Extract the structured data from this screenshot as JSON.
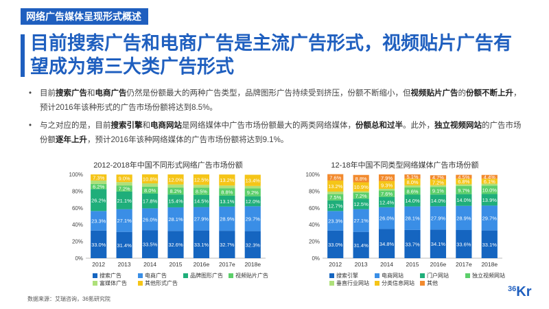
{
  "header": {
    "tag": "网络广告媒体呈现形式概述",
    "headline": "目前搜索广告和电商广告是主流广告形式，视频贴片广告有望成为第三大类广告形式"
  },
  "bullets": [
    {
      "parts": [
        {
          "t": "目前",
          "b": false
        },
        {
          "t": "搜索广告",
          "b": true
        },
        {
          "t": "和",
          "b": false
        },
        {
          "t": "电商广告",
          "b": true
        },
        {
          "t": "仍然是份额最大的两种广告类型，品牌图形广告持续受到挤压，份额不断缩小，但",
          "b": false
        },
        {
          "t": "视频贴片广告",
          "b": true
        },
        {
          "t": "的",
          "b": false
        },
        {
          "t": "份额不断上升",
          "b": true
        },
        {
          "t": "，预计2016年该种形式的广告市场份额将达到8.5%。",
          "b": false
        }
      ]
    },
    {
      "parts": [
        {
          "t": "与之对应的是，目前",
          "b": false
        },
        {
          "t": "搜索引擎",
          "b": true
        },
        {
          "t": "和",
          "b": false
        },
        {
          "t": "电商网站",
          "b": true
        },
        {
          "t": "是网络媒体中广告市场份额最大的两类网络媒体，",
          "b": false
        },
        {
          "t": "份额总和过半",
          "b": true
        },
        {
          "t": "。此外，",
          "b": false
        },
        {
          "t": "独立视频网站",
          "b": true
        },
        {
          "t": "的广告市场份额",
          "b": false
        },
        {
          "t": "逐年上升",
          "b": true
        },
        {
          "t": "，预计2016年该种网络媒体的广告市场份额将达到9.1%。",
          "b": false
        }
      ]
    }
  ],
  "bullet_dot": "•",
  "source": "数据来源：艾瑞咨询，36氪研究院",
  "logo": {
    "num": "36",
    "letters": "Kr"
  },
  "chart_data": [
    {
      "type": "bar",
      "stacked": true,
      "title": "2012-2018年中国不同形式网络广告市场份额",
      "categories": [
        "2012",
        "2013",
        "2014",
        "2015",
        "2016e",
        "2017e",
        "2018e"
      ],
      "yticks": [
        "0%",
        "20%",
        "40%",
        "60%",
        "80%",
        "100%"
      ],
      "ylim": [
        0,
        100
      ],
      "series": [
        {
          "name": "搜索广告",
          "color": "#1565c0",
          "values": [
            33.0,
            31.4,
            33.5,
            32.6,
            33.1,
            32.7,
            32.3
          ],
          "labels": [
            "33.0%",
            "31.4%",
            "33.5%",
            "32.6%",
            "33.1%",
            "32.7%",
            "32.3%"
          ]
        },
        {
          "name": "电商广告",
          "color": "#3a8ee6",
          "values": [
            23.3,
            27.1,
            26.0,
            28.1,
            27.9,
            28.9,
            29.7
          ],
          "labels": [
            "23.3%",
            "27.1%",
            "26.0%",
            "28.1%",
            "27.9%",
            "28.9%",
            "29.7%"
          ]
        },
        {
          "name": "品牌图形广告",
          "color": "#1fae7a",
          "values": [
            26.2,
            21.1,
            17.8,
            15.4,
            14.5,
            13.1,
            12.0
          ],
          "labels": [
            "26.2%",
            "21.1%",
            "17.8%",
            "15.4%",
            "14.5%",
            "13.1%",
            "12.0%"
          ]
        },
        {
          "name": "视频贴片广告",
          "color": "#5ccf6a",
          "values": [
            6.2,
            7.2,
            8.0,
            8.2,
            8.5,
            8.8,
            9.2
          ],
          "labels": [
            "6.2%",
            "7.2%",
            "8.0%",
            "8.2%",
            "8.5%",
            "8.8%",
            "9.2%"
          ]
        },
        {
          "name": "富媒体广告",
          "color": "#aee07a",
          "values": [
            4.0,
            4.0,
            4.0,
            3.7,
            3.5,
            3.2,
            3.0
          ],
          "labels": [
            "",
            "",
            "",
            "",
            "",
            "",
            ""
          ]
        },
        {
          "name": "其他形式广告",
          "color": "#f5c518",
          "values": [
            7.3,
            9.0,
            10.8,
            12.0,
            12.5,
            13.2,
            13.4
          ],
          "labels": [
            "7.3%",
            "9.0%",
            "10.8%",
            "12.0%",
            "12.5%",
            "13.2%",
            "13.4%"
          ]
        }
      ]
    },
    {
      "type": "bar",
      "stacked": true,
      "title": "12-18年中国不同类型网络媒体广告市场份额",
      "categories": [
        "2012",
        "2013",
        "2014",
        "2015",
        "2016e",
        "2017e",
        "2018e"
      ],
      "yticks": [
        "0%",
        "20%",
        "40%",
        "60%",
        "80%",
        "100%"
      ],
      "ylim": [
        0,
        100
      ],
      "series": [
        {
          "name": "搜索引擎",
          "color": "#1565c0",
          "values": [
            33.0,
            31.4,
            34.8,
            33.7,
            34.1,
            33.6,
            33.1
          ],
          "labels": [
            "33.0%",
            "31.4%",
            "34.8%",
            "33.7%",
            "34.1%",
            "33.6%",
            "33.1%"
          ]
        },
        {
          "name": "电商网站",
          "color": "#3a8ee6",
          "values": [
            23.3,
            27.1,
            26.0,
            28.1,
            27.9,
            28.9,
            29.7
          ],
          "labels": [
            "23.3%",
            "27.1%",
            "26.0%",
            "28.1%",
            "27.9%",
            "28.9%",
            "29.7%"
          ]
        },
        {
          "name": "门户网站",
          "color": "#1fae7a",
          "values": [
            12.7,
            12.5,
            12.4,
            14.0,
            14.0,
            14.0,
            13.9
          ],
          "labels": [
            "12.7%",
            "12.5%",
            "12.4%",
            "14.0%",
            "14.0%",
            "14.0%",
            "13.9%"
          ]
        },
        {
          "name": "独立视频网站",
          "color": "#5ccf6a",
          "values": [
            7.5,
            7.2,
            7.6,
            8.6,
            9.1,
            9.7,
            10.0
          ],
          "labels": [
            "7.5%",
            "7.2%",
            "7.6%",
            "8.6%",
            "9.1%",
            "9.7%",
            "10.0%"
          ]
        },
        {
          "name": "垂直行业网站",
          "color": "#aee07a",
          "values": [
            3.0,
            1.5,
            2.0,
            2.5,
            2.0,
            2.0,
            2.2
          ],
          "labels": [
            "",
            "",
            "",
            "",
            "",
            "",
            ""
          ]
        },
        {
          "name": "分类信息网站",
          "color": "#f5c518",
          "values": [
            13.2,
            10.9,
            9.3,
            8.0,
            7.2,
            6.8,
            6.1
          ],
          "labels": [
            "13.2%",
            "10.9%",
            "9.3%",
            "8.0%",
            "7.2%",
            "6.8%",
            "6.1%"
          ]
        },
        {
          "name": "其他",
          "color": "#f28a2e",
          "values": [
            7.6,
            8.8,
            7.9,
            5.1,
            4.7,
            4.5,
            4.4
          ],
          "labels": [
            "7.6%",
            "8.8%",
            "7.9%",
            "5.1%",
            "4.7%",
            "4.5%",
            "4.4%"
          ]
        }
      ]
    }
  ]
}
